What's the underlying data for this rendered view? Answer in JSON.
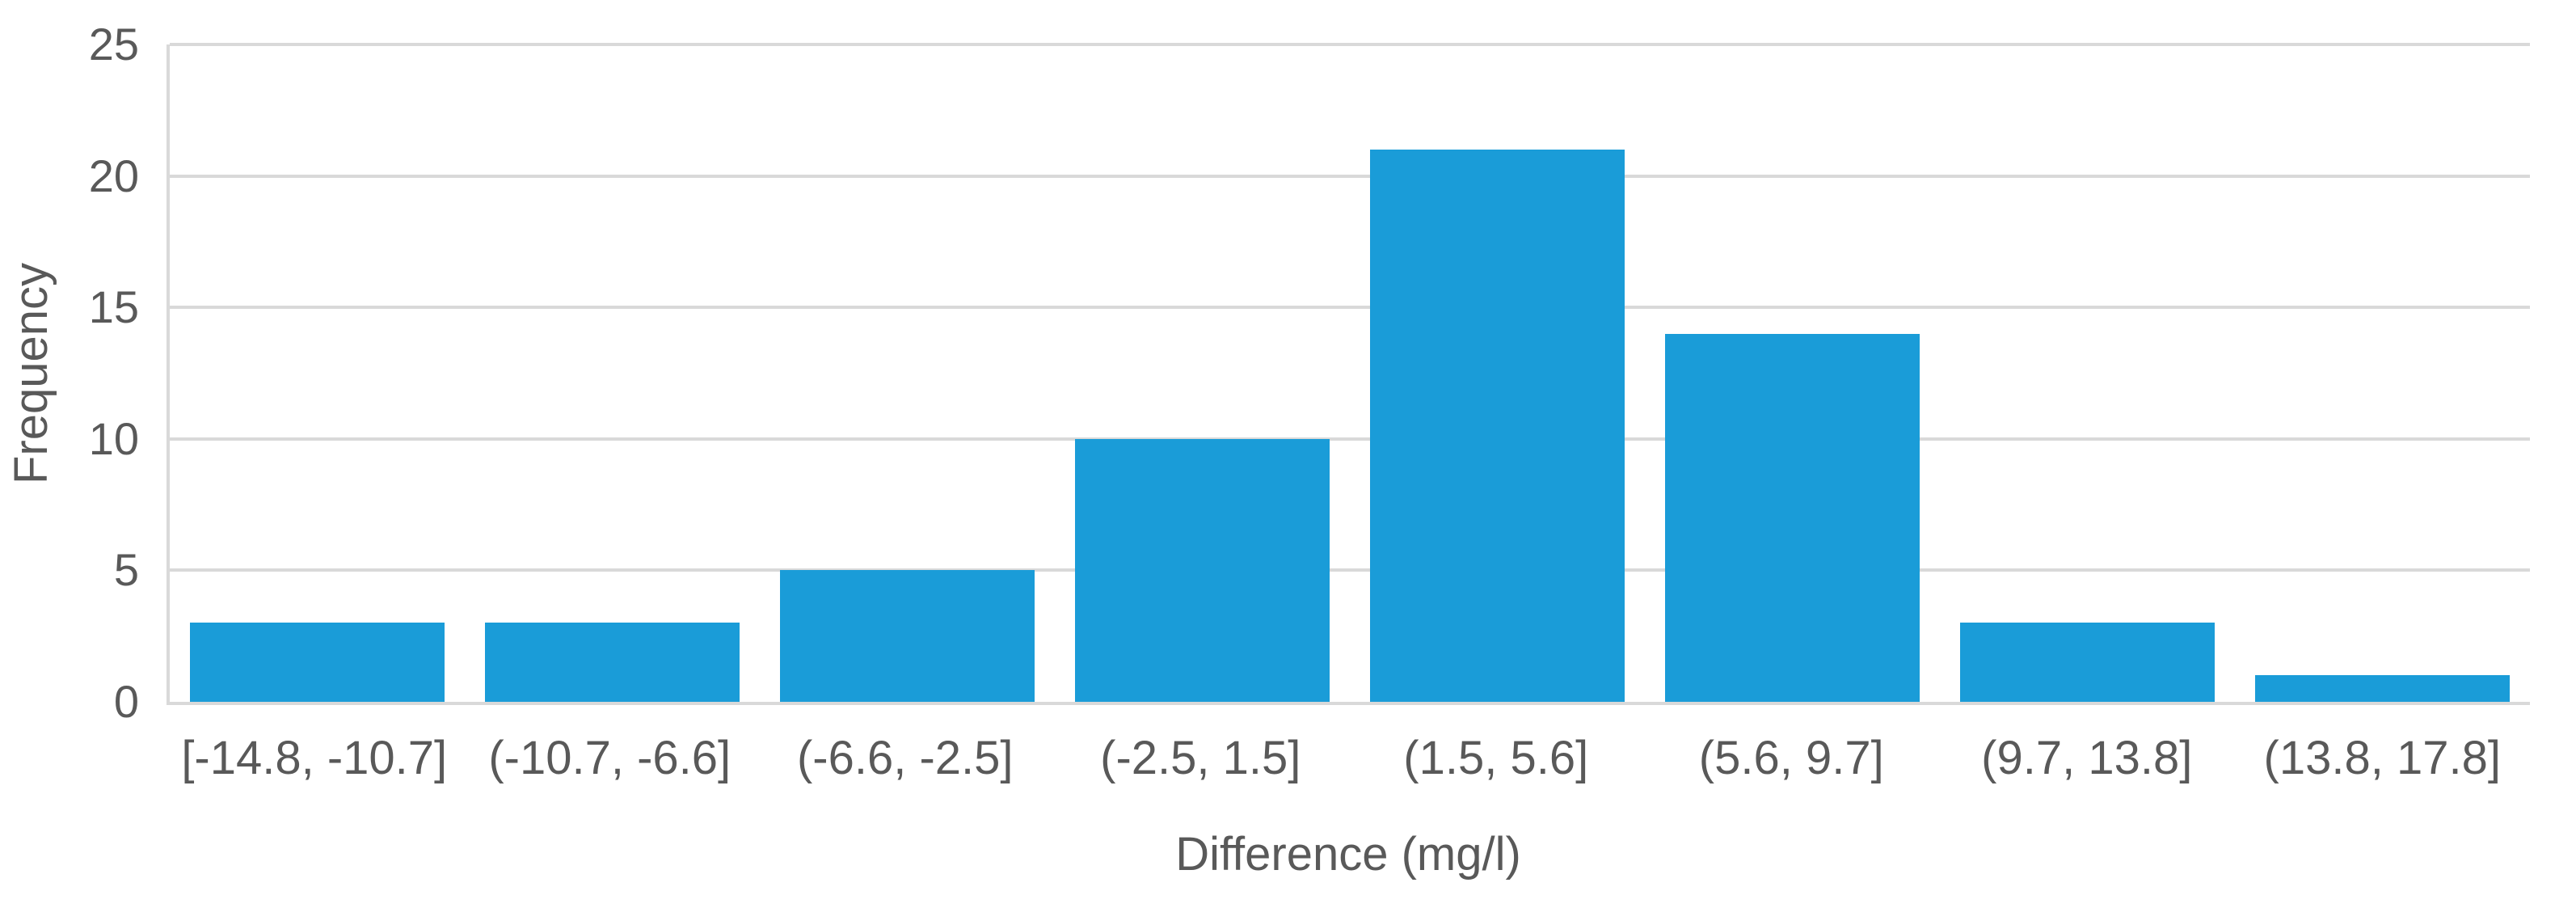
{
  "chart_data": {
    "type": "bar",
    "title": "",
    "xlabel": "Difference (mg/l)",
    "ylabel": "Frequency",
    "categories": [
      "[-14.8, -10.7]",
      "(-10.7, -6.6]",
      "(-6.6, -2.5]",
      "(-2.5, 1.5]",
      "(1.5, 5.6]",
      "(5.6, 9.7]",
      "(9.7, 13.8]",
      "(13.8, 17.8]"
    ],
    "values": [
      3,
      3,
      5,
      10,
      21,
      14,
      3,
      1
    ],
    "ylim": [
      0,
      25
    ],
    "yticks": [
      0,
      5,
      10,
      15,
      20,
      25
    ],
    "grid": true,
    "legend": "none",
    "bar_color": "#1A9CD8",
    "grid_color": "#D9D9D9",
    "axis_color": "#D9D9D9",
    "text_color": "#595959"
  }
}
